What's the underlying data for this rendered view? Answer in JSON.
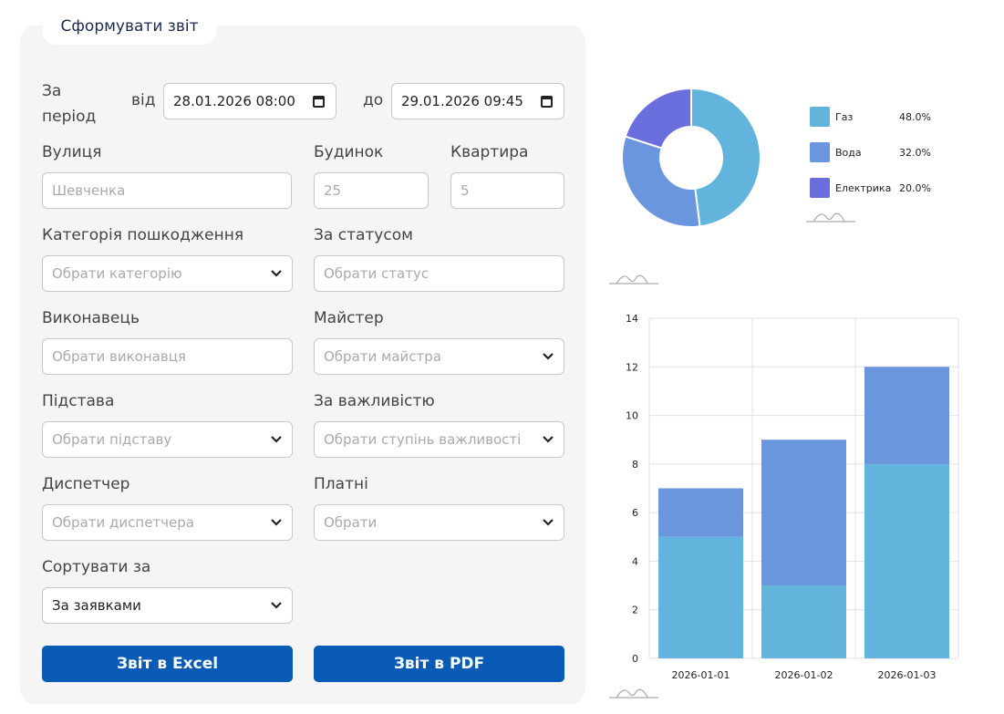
{
  "tab_title": "Сформувати звіт",
  "period": {
    "label": "За період",
    "from_label": "від",
    "from_value": "28.01.2026 08:00",
    "to_label": "до",
    "to_value": "29.01.2026 09:45"
  },
  "street": {
    "label": "Вулиця",
    "placeholder": "Шевченка"
  },
  "house": {
    "label": "Будинок",
    "placeholder": "25"
  },
  "apartment": {
    "label": "Квартира",
    "placeholder": "5"
  },
  "category": {
    "label": "Категорія пошкодження",
    "placeholder": "Обрати категорію"
  },
  "status": {
    "label": "За статусом",
    "placeholder": "Обрати статус"
  },
  "executor": {
    "label": "Виконавець",
    "placeholder": "Обрати виконавця"
  },
  "master": {
    "label": "Майстер",
    "placeholder": "Обрати майстра"
  },
  "basis": {
    "label": "Підстава",
    "placeholder": "Обрати підставу"
  },
  "importance": {
    "label": "За важливістю",
    "placeholder": "Обрати ступінь важливості"
  },
  "dispatcher": {
    "label": "Диспетчер",
    "placeholder": "Обрати диспетчера"
  },
  "paid": {
    "label": "Платні",
    "placeholder": "Обрати"
  },
  "sort": {
    "label": "Сортувати за",
    "value": "За заявками"
  },
  "buttons": {
    "excel": "Звіт в Excel",
    "pdf": "Звіт в PDF"
  },
  "chart_data": [
    {
      "type": "pie",
      "donut": true,
      "labels": [
        "Газ",
        "Вода",
        "Електрика"
      ],
      "values": [
        48.0,
        32.0,
        20.0
      ],
      "value_labels": [
        "48.0%",
        "32.0%",
        "20.0%"
      ],
      "colors": [
        "#63b4dc",
        "#6a96de",
        "#6b6fde"
      ],
      "legend": "right"
    },
    {
      "type": "bar",
      "stacked": true,
      "categories": [
        "2026-01-01",
        "2026-01-02",
        "2026-01-03"
      ],
      "series": [
        {
          "name": "Газ",
          "values": [
            5,
            3,
            8
          ],
          "color": "#63b4dc"
        },
        {
          "name": "Вода",
          "values": [
            2,
            6,
            4
          ],
          "color": "#6a96de"
        }
      ],
      "ylim": [
        0,
        14
      ],
      "yticks": [
        "0",
        "2",
        "4",
        "6",
        "8",
        "10",
        "12",
        "14"
      ],
      "grid": true
    }
  ]
}
